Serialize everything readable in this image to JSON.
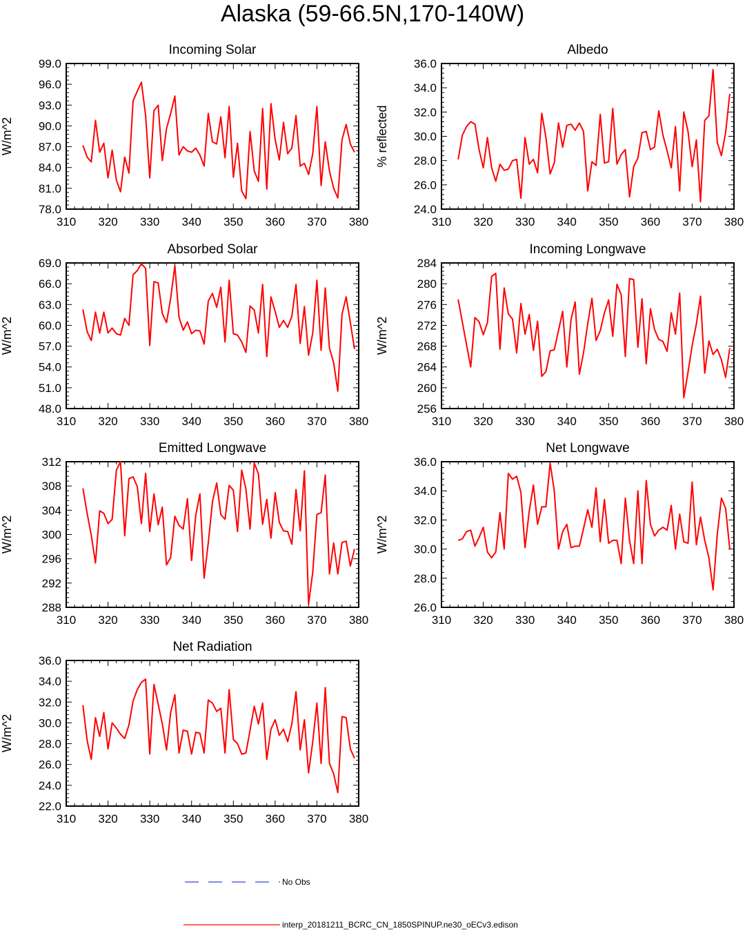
{
  "figure": {
    "title": "Alaska (59-66.5N,170-140W)",
    "line_color": "#ff0000",
    "obs_color": "#3344dd"
  },
  "legend": {
    "obs_label": "No Obs",
    "model_label": "interp_20181211_BCRC_CN_1850SPINUP.ne30_oECv3.edison"
  },
  "chart_data": [
    {
      "type": "line",
      "title": "Incoming Solar",
      "ylabel": "W/m^2",
      "xlim": [
        310,
        380
      ],
      "ylim": [
        78,
        99
      ],
      "xticks": [
        310,
        320,
        330,
        340,
        350,
        360,
        370,
        380
      ],
      "xtick_labels": [
        "310",
        "320",
        "330",
        "340",
        "350",
        "360",
        "370",
        "380"
      ],
      "yticks": [
        78,
        81,
        84,
        87,
        90,
        93,
        96,
        99
      ],
      "ytick_labels": [
        "78.0",
        "81.0",
        "84.0",
        "87.0",
        "90.0",
        "93.0",
        "96.0",
        "99.0"
      ],
      "x_start": 314,
      "values": [
        87.2,
        85.5,
        84.8,
        90.8,
        86.2,
        87.5,
        82.5,
        86.5,
        82.2,
        80.5,
        85.5,
        83.2,
        93.6,
        95.0,
        96.3,
        91.5,
        82.5,
        92.2,
        93.0,
        85.0,
        89.6,
        91.8,
        94.3,
        85.8,
        87.0,
        86.4,
        86.2,
        86.8,
        85.8,
        84.2,
        91.8,
        87.7,
        87.4,
        91.3,
        85.4,
        92.8,
        82.6,
        87.5,
        80.6,
        79.5,
        89.2,
        83.5,
        82.0,
        92.5,
        80.9,
        93.2,
        88.0,
        85.1,
        90.5,
        86.0,
        86.8,
        91.5,
        84.2,
        84.6,
        83.0,
        86.0,
        92.8,
        81.4,
        87.7,
        83.5,
        81.0,
        79.6,
        88.0,
        90.2,
        87.4,
        86.2
      ]
    },
    {
      "type": "line",
      "title": "Albedo",
      "ylabel": "% reflected",
      "xlim": [
        310,
        380
      ],
      "ylim": [
        24,
        36
      ],
      "xticks": [
        310,
        320,
        330,
        340,
        350,
        360,
        370,
        380
      ],
      "xtick_labels": [
        "310",
        "320",
        "330",
        "340",
        "350",
        "360",
        "370",
        "380"
      ],
      "yticks": [
        24,
        26,
        28,
        30,
        32,
        34,
        36
      ],
      "ytick_labels": [
        "24.0",
        "26.0",
        "28.0",
        "30.0",
        "32.0",
        "34.0",
        "36.0"
      ],
      "x_start": 314,
      "values": [
        28.1,
        30.1,
        30.8,
        31.2,
        31.0,
        28.9,
        27.4,
        29.9,
        27.4,
        26.3,
        27.7,
        27.2,
        27.3,
        28.0,
        28.1,
        24.9,
        29.9,
        27.7,
        28.1,
        27.0,
        31.9,
        29.9,
        26.9,
        27.8,
        31.1,
        29.1,
        30.9,
        31.0,
        30.5,
        31.1,
        30.4,
        25.5,
        27.9,
        27.6,
        31.8,
        27.8,
        27.9,
        32.3,
        27.7,
        28.5,
        28.9,
        25.0,
        27.5,
        28.2,
        30.3,
        30.4,
        28.9,
        29.1,
        32.1,
        30.1,
        28.8,
        27.4,
        30.8,
        25.5,
        32.0,
        30.4,
        27.5,
        29.7,
        24.6,
        31.3,
        31.7,
        35.5,
        29.5,
        28.4,
        30.3,
        33.5
      ]
    },
    {
      "type": "line",
      "title": "Absorbed Solar",
      "ylabel": "W/m^2",
      "xlim": [
        310,
        380
      ],
      "ylim": [
        48,
        69
      ],
      "xticks": [
        310,
        320,
        330,
        340,
        350,
        360,
        370,
        380
      ],
      "xtick_labels": [
        "310",
        "320",
        "330",
        "340",
        "350",
        "360",
        "370",
        "380"
      ],
      "yticks": [
        48,
        51,
        54,
        57,
        60,
        63,
        66,
        69
      ],
      "ytick_labels": [
        "48.0",
        "51.0",
        "54.0",
        "57.0",
        "60.0",
        "63.0",
        "66.0",
        "69.0"
      ],
      "x_start": 314,
      "values": [
        62.3,
        59.1,
        57.8,
        61.9,
        58.9,
        61.9,
        58.9,
        59.6,
        58.8,
        58.6,
        61.0,
        60.0,
        67.3,
        67.9,
        68.9,
        68.2,
        57.1,
        66.3,
        66.1,
        61.7,
        60.4,
        63.9,
        68.6,
        61.2,
        59.3,
        60.5,
        58.8,
        59.3,
        59.2,
        57.3,
        63.5,
        64.6,
        62.6,
        65.5,
        57.6,
        66.5,
        58.8,
        58.6,
        57.6,
        56.1,
        62.8,
        62.2,
        58.9,
        65.9,
        55.5,
        64.1,
        62.0,
        59.7,
        60.7,
        59.7,
        61.3,
        65.9,
        57.4,
        62.7,
        55.7,
        58.9,
        66.5,
        56.4,
        65.4,
        56.7,
        54.6,
        50.5,
        61.6,
        64.1,
        60.4,
        56.6
      ]
    },
    {
      "type": "line",
      "title": "Incoming Longwave",
      "ylabel": "W/m^2",
      "xlim": [
        310,
        380
      ],
      "ylim": [
        256,
        284
      ],
      "xticks": [
        310,
        320,
        330,
        340,
        350,
        360,
        370,
        380
      ],
      "xtick_labels": [
        "310",
        "320",
        "330",
        "340",
        "350",
        "360",
        "370",
        "380"
      ],
      "yticks": [
        256,
        260,
        264,
        268,
        272,
        276,
        280,
        284
      ],
      "ytick_labels": [
        "256",
        "260",
        "264",
        "268",
        "272",
        "276",
        "280",
        "284"
      ],
      "x_start": 314,
      "values": [
        277.0,
        272.6,
        268.3,
        264.0,
        273.5,
        272.7,
        270.2,
        272.5,
        281.4,
        282.0,
        267.4,
        279.2,
        274.2,
        273.2,
        266.7,
        276.2,
        270.3,
        274.1,
        267.2,
        272.8,
        262.2,
        263.1,
        267.1,
        267.3,
        271.0,
        274.7,
        264.0,
        273.1,
        276.5,
        262.6,
        266.7,
        272.3,
        277.2,
        269.1,
        271.0,
        274.4,
        276.9,
        269.9,
        279.9,
        277.9,
        266.0,
        281.0,
        280.8,
        267.8,
        277.1,
        264.6,
        275.2,
        271.2,
        269.3,
        268.9,
        267.0,
        274.4,
        270.3,
        278.2,
        258.1,
        263.0,
        268.1,
        272.3,
        277.6,
        262.8,
        269.0,
        266.4,
        267.4,
        265.4,
        262.0,
        267.6
      ]
    },
    {
      "type": "line",
      "title": "Emitted Longwave",
      "ylabel": "W/m^2",
      "xlim": [
        310,
        380
      ],
      "ylim": [
        288,
        312
      ],
      "xticks": [
        310,
        320,
        330,
        340,
        350,
        360,
        370,
        380
      ],
      "xtick_labels": [
        "310",
        "320",
        "330",
        "340",
        "350",
        "360",
        "370",
        "380"
      ],
      "yticks": [
        288,
        292,
        296,
        300,
        304,
        308,
        312
      ],
      "ytick_labels": [
        "288",
        "292",
        "296",
        "300",
        "304",
        "308",
        "312"
      ],
      "x_start": 314,
      "values": [
        307.6,
        303.5,
        299.9,
        295.3,
        303.9,
        303.5,
        301.8,
        302.5,
        310.6,
        312.0,
        299.8,
        309.2,
        309.5,
        307.9,
        301.8,
        310.1,
        300.5,
        306.7,
        301.6,
        304.5,
        295.0,
        296.2,
        303.0,
        301.5,
        300.9,
        305.9,
        295.7,
        303.2,
        306.7,
        292.8,
        298.6,
        305.4,
        308.5,
        303.3,
        302.5,
        308.1,
        307.3,
        300.5,
        310.6,
        307.5,
        300.9,
        311.8,
        310.0,
        301.7,
        305.8,
        299.4,
        306.9,
        302.0,
        300.6,
        300.5,
        298.4,
        307.4,
        300.6,
        310.5,
        288.5,
        293.8,
        303.3,
        303.6,
        309.8,
        293.5,
        298.6,
        293.5,
        298.7,
        298.9,
        294.8,
        297.6
      ]
    },
    {
      "type": "line",
      "title": "Net Longwave",
      "ylabel": "W/m^2",
      "xlim": [
        310,
        380
      ],
      "ylim": [
        26,
        36
      ],
      "xticks": [
        310,
        320,
        330,
        340,
        350,
        360,
        370,
        380
      ],
      "xtick_labels": [
        "310",
        "320",
        "330",
        "340",
        "350",
        "360",
        "370",
        "380"
      ],
      "yticks": [
        26,
        28,
        30,
        32,
        34,
        36
      ],
      "ytick_labels": [
        "26.0",
        "28.0",
        "30.0",
        "32.0",
        "34.0",
        "36.0"
      ],
      "x_start": 314,
      "values": [
        30.6,
        30.7,
        31.2,
        31.3,
        30.2,
        30.8,
        31.5,
        29.8,
        29.4,
        29.8,
        32.5,
        30.0,
        35.2,
        34.8,
        35.0,
        33.9,
        30.1,
        32.6,
        34.4,
        31.7,
        32.9,
        32.9,
        35.9,
        34.0,
        30.0,
        31.2,
        31.7,
        30.1,
        30.2,
        30.2,
        31.4,
        32.7,
        31.5,
        34.2,
        30.5,
        33.4,
        30.4,
        30.6,
        30.6,
        29.0,
        33.5,
        30.6,
        29.0,
        34.0,
        29.0,
        34.7,
        31.7,
        30.9,
        31.3,
        31.5,
        31.3,
        33.0,
        30.0,
        32.4,
        30.5,
        30.4,
        34.6,
        30.3,
        32.2,
        30.6,
        29.4,
        27.2,
        31.0,
        33.5,
        32.8,
        30.0
      ]
    },
    {
      "type": "line",
      "title": "Net Radiation",
      "ylabel": "W/m^2",
      "xlim": [
        310,
        380
      ],
      "ylim": [
        22,
        36
      ],
      "xticks": [
        310,
        320,
        330,
        340,
        350,
        360,
        370,
        380
      ],
      "xtick_labels": [
        "310",
        "320",
        "330",
        "340",
        "350",
        "360",
        "370",
        "380"
      ],
      "yticks": [
        22,
        24,
        26,
        28,
        30,
        32,
        34,
        36
      ],
      "ytick_labels": [
        "22.0",
        "24.0",
        "26.0",
        "28.0",
        "30.0",
        "32.0",
        "34.0",
        "36.0"
      ],
      "x_start": 314,
      "values": [
        31.7,
        28.3,
        26.5,
        30.5,
        28.7,
        31.0,
        27.5,
        30.0,
        29.5,
        28.9,
        28.5,
        29.8,
        32.1,
        33.2,
        33.9,
        34.2,
        27.0,
        33.7,
        31.8,
        29.9,
        27.4,
        31.0,
        32.7,
        27.1,
        29.3,
        29.2,
        27.0,
        29.1,
        29.0,
        27.1,
        32.2,
        31.9,
        31.1,
        31.4,
        27.1,
        33.2,
        28.4,
        28.0,
        27.0,
        27.1,
        29.3,
        31.6,
        29.9,
        31.9,
        26.5,
        29.4,
        30.3,
        28.8,
        29.4,
        28.2,
        29.9,
        33.0,
        27.4,
        30.3,
        25.2,
        28.2,
        31.9,
        26.1,
        33.4,
        26.1,
        25.1,
        23.3,
        30.6,
        30.5,
        27.5,
        26.6
      ]
    }
  ]
}
